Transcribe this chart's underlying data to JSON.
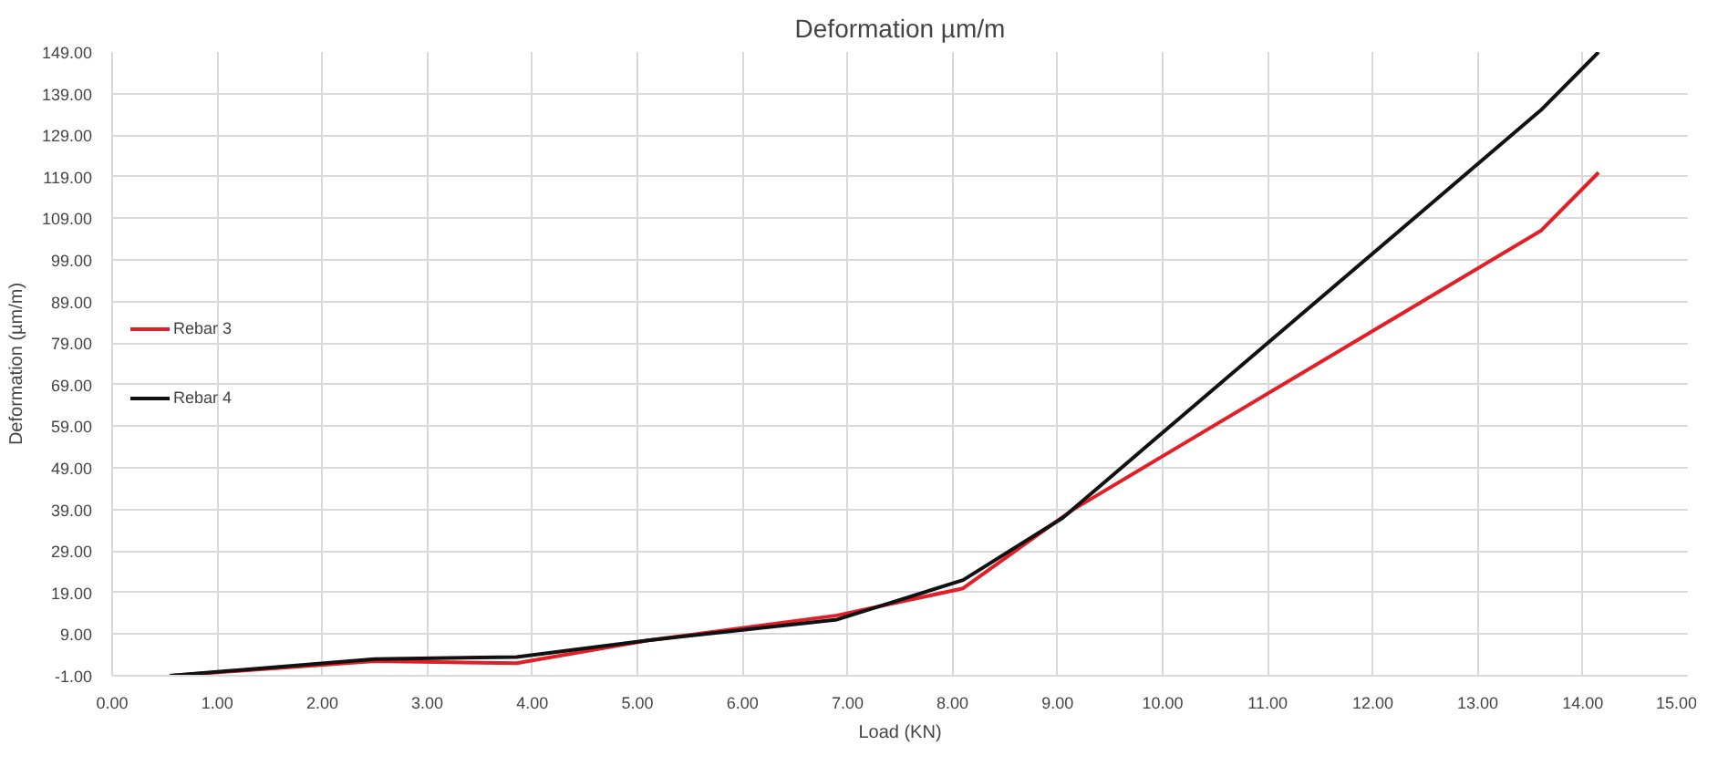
{
  "chart_data": {
    "type": "line",
    "title": "Deformation µm/m",
    "xlabel": "Load (KN)",
    "ylabel": "Deformation (µm/m)",
    "xlim": [
      0,
      15
    ],
    "xticks": [
      {
        "value": 0,
        "label": "0.00"
      },
      {
        "value": 1,
        "label": "1.00"
      },
      {
        "value": 2,
        "label": "2.00"
      },
      {
        "value": 3,
        "label": "3.00"
      },
      {
        "value": 4,
        "label": "4.00"
      },
      {
        "value": 5,
        "label": "5.00"
      },
      {
        "value": 6,
        "label": "6.00"
      },
      {
        "value": 7,
        "label": "7.00"
      },
      {
        "value": 8,
        "label": "8.00"
      },
      {
        "value": 9,
        "label": "9.00"
      },
      {
        "value": 10,
        "label": "10.00"
      },
      {
        "value": 11,
        "label": "11.00"
      },
      {
        "value": 12,
        "label": "12.00"
      },
      {
        "value": 13,
        "label": "13.00"
      },
      {
        "value": 14,
        "label": "14.00"
      },
      {
        "value": 15,
        "label": "15.00"
      }
    ],
    "ylim": [
      -1,
      149
    ],
    "yticks": [
      {
        "value": -1,
        "label": "-1.00"
      },
      {
        "value": 9,
        "label": "9.00"
      },
      {
        "value": 19,
        "label": "19.00"
      },
      {
        "value": 29,
        "label": "29.00"
      },
      {
        "value": 39,
        "label": "39.00"
      },
      {
        "value": 49,
        "label": "49.00"
      },
      {
        "value": 59,
        "label": "59.00"
      },
      {
        "value": 69,
        "label": "69.00"
      },
      {
        "value": 79,
        "label": "79.00"
      },
      {
        "value": 89,
        "label": "89.00"
      },
      {
        "value": 99,
        "label": "99.00"
      },
      {
        "value": 109,
        "label": "109.00"
      },
      {
        "value": 119,
        "label": "119.00"
      },
      {
        "value": 129,
        "label": "129.00"
      },
      {
        "value": 139,
        "label": "139.00"
      },
      {
        "value": 149,
        "label": "149.00"
      }
    ],
    "grid": true,
    "legend": "left",
    "marker": "none",
    "line_style": "solid",
    "series": [
      {
        "name": "Rebar 3",
        "color": "#e41e26",
        "x": [
          0.55,
          2.5,
          3.85,
          5.1,
          6.9,
          8.1,
          9.15,
          13.6,
          14.15
        ],
        "values": [
          -1,
          2.5,
          2,
          7.5,
          13.5,
          20,
          39,
          106,
          120
        ]
      },
      {
        "name": "Rebar 4",
        "color": "#111111",
        "x": [
          0.55,
          2.5,
          3.85,
          5.1,
          6.9,
          8.1,
          9.05,
          13.6,
          14.15
        ],
        "values": [
          -1,
          3,
          3.5,
          7.5,
          12.5,
          22,
          37,
          135,
          149
        ]
      }
    ]
  }
}
